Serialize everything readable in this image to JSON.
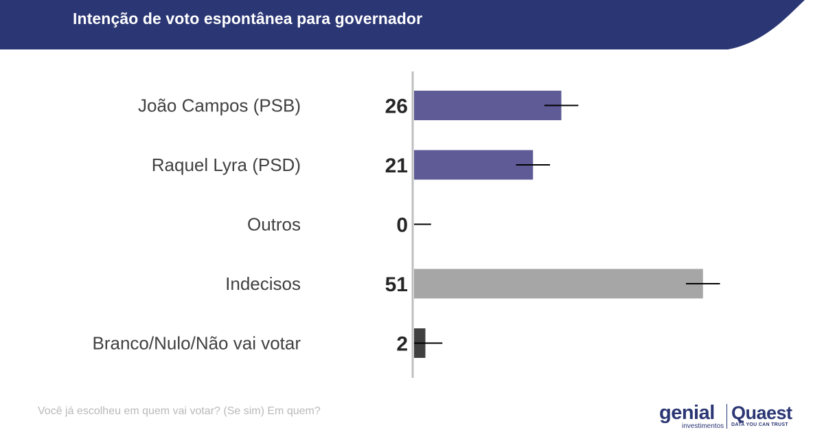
{
  "header": {
    "title": "Intenção de voto espontânea para governador"
  },
  "colors": {
    "header_bg": "#2b3674",
    "candidate_bar": "#5f5b96",
    "undecided_bar": "#a6a6a6",
    "blank_bar": "#404040",
    "axis": "#bfbfbf",
    "error_bar": "#000000"
  },
  "chart_data": {
    "type": "bar",
    "orientation": "horizontal",
    "categories": [
      "João Campos (PSB)",
      "Raquel Lyra (PSD)",
      "Outros",
      "Indecisos",
      "Branco/Nulo/Não vai votar"
    ],
    "values": [
      26,
      21,
      0,
      51,
      2
    ],
    "data_labels": [
      "26",
      "21",
      "0",
      "51",
      "2"
    ],
    "error_margin": 3,
    "bar_colors": [
      "#5f5b96",
      "#5f5b96",
      "#5f5b96",
      "#a6a6a6",
      "#404040"
    ],
    "xlim": [
      0,
      60
    ],
    "grid": false,
    "legend": "none",
    "title": "Intenção de voto espontânea para governador"
  },
  "footer": {
    "question": "Você já escolheu em quem vai votar? (Se sim) Em quem?",
    "logo_genial": "genial",
    "logo_genial_sub": "investimentos",
    "logo_quaest": "Quaest",
    "logo_quaest_sub": "DATA YOU CAN TRUST"
  }
}
